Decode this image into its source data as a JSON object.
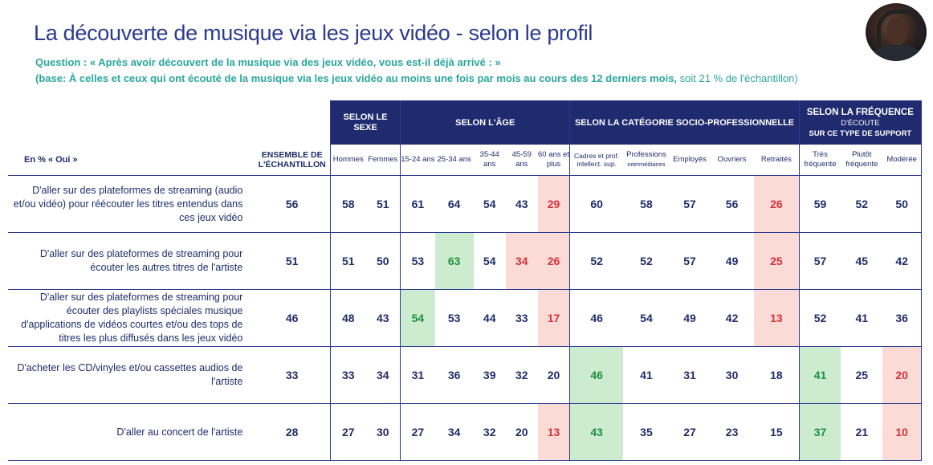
{
  "title": "La découverte de musique via les jeux vidéo - selon le profil",
  "question": "Question : « Après avoir découvert de la musique via des jeux vidéo, vous est-il déjà arrivé : »",
  "base_main": "(base: À celles et ceux qui ont écouté de la musique via les jeux vidéo au moins une fois par mois au cours des 12 derniers mois,",
  "base_rest": " soit 21 % de l'échantillon)",
  "header": {
    "en_pct": "En % « Oui »",
    "ensemble": "ENSEMBLE DE L'ÉCHANTILLON",
    "groups": {
      "sexe": "SELON LE SEXE",
      "age": "SELON L'ÂGE",
      "csp": "SELON LA CATÉGORIE SOCIO-PROFESSIONNELLE",
      "freq_1": "SELON LA FRÉQUENCE",
      "freq_2": "D'ÉCOUTE",
      "freq_3": "SUR CE TYPE DE SUPPORT"
    },
    "cols": {
      "hommes": "Hommes",
      "femmes": "Femmes",
      "a1524": "15-24 ans",
      "a2534": "25-34 ans",
      "a3544": "35-44 ans",
      "a4559": "45-59 ans",
      "a60": "60 ans et plus",
      "cadres": "Cadres et prof. intellect. sup.",
      "prof_int_1": "Professions",
      "prof_int_2": "intermédiaires",
      "employes": "Employés",
      "ouvriers": "Ouvriers",
      "retraites": "Retraités",
      "tres": "Très fréquente",
      "plutot": "Plutôt fréquente",
      "moderee": "Modérée"
    }
  },
  "rows": [
    {
      "label": "D'aller sur des plateformes de streaming (audio et/ou vidéo) pour réécouter les titres entendus dans ces jeux vidéo",
      "values": [
        "56",
        "58",
        "51",
        "61",
        "64",
        "54",
        "43",
        "29",
        "60",
        "58",
        "57",
        "56",
        "26",
        "59",
        "52",
        "50"
      ]
    },
    {
      "label": "D'aller sur des plateformes de streaming pour écouter les autres titres de l'artiste",
      "values": [
        "51",
        "51",
        "50",
        "53",
        "63",
        "54",
        "34",
        "26",
        "52",
        "52",
        "57",
        "49",
        "25",
        "57",
        "45",
        "42"
      ]
    },
    {
      "label": "D'aller sur des plateformes de streaming pour écouter des playlists spéciales musique d'applications de vidéos courtes et/ou des tops de titres les plus diffusés dans les jeux vidéo",
      "values": [
        "46",
        "48",
        "43",
        "54",
        "53",
        "44",
        "33",
        "17",
        "46",
        "54",
        "49",
        "42",
        "13",
        "52",
        "41",
        "36"
      ]
    },
    {
      "label": "D'acheter les CD/vinyles et/ou cassettes audios de l'artiste",
      "values": [
        "33",
        "33",
        "34",
        "31",
        "36",
        "39",
        "32",
        "20",
        "46",
        "41",
        "31",
        "30",
        "18",
        "41",
        "25",
        "20"
      ]
    },
    {
      "label": "D'aller au concert de l'artiste",
      "values": [
        "28",
        "27",
        "30",
        "27",
        "34",
        "32",
        "20",
        "13",
        "43",
        "35",
        "27",
        "23",
        "15",
        "37",
        "21",
        "10"
      ]
    }
  ],
  "highlights": {
    "green": "#cdeccf",
    "red": "#fadbd6",
    "header_dark": "#1f2b6e"
  }
}
